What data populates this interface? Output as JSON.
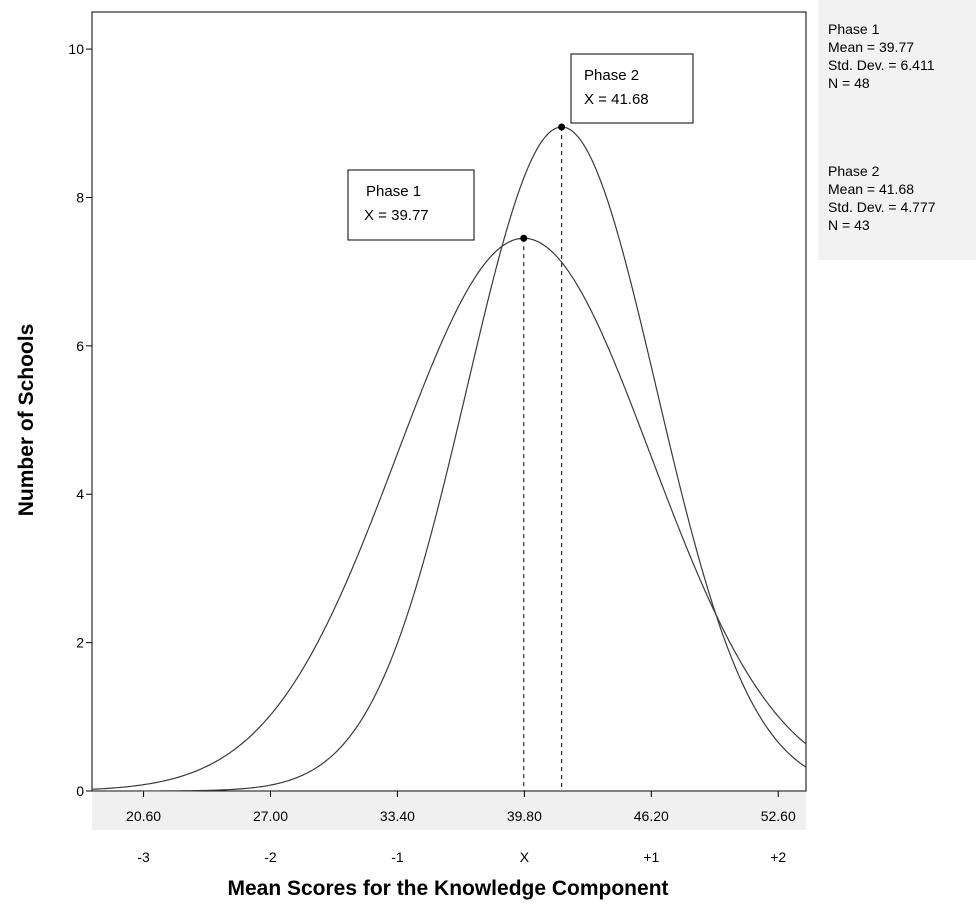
{
  "chart_data": {
    "type": "line",
    "xlabel": "Mean Scores for the Knowledge Component",
    "ylabel": "Number of Schools",
    "xlim": [
      18.0,
      54.0
    ],
    "ylim": [
      0,
      10.5
    ],
    "x_ticks": [
      20.6,
      27.0,
      33.4,
      39.8,
      46.2,
      52.6
    ],
    "x_tick_labels": [
      "20.60",
      "27.00",
      "33.40",
      "39.80",
      "46.20",
      "52.60"
    ],
    "z_tick_labels": [
      "-3",
      "-2",
      "-1",
      "X",
      "+1",
      "+2"
    ],
    "y_ticks": [
      0,
      2,
      4,
      6,
      8,
      10
    ],
    "y_tick_labels": [
      "0",
      "2",
      "4",
      "6",
      "8",
      "10"
    ],
    "grid": false,
    "series": [
      {
        "name": "Phase 1",
        "mean": 39.77,
        "std_dev": 6.411,
        "n": 48,
        "peak": 7.45
      },
      {
        "name": "Phase 2",
        "mean": 41.68,
        "std_dev": 4.777,
        "n": 43,
        "peak": 8.95
      }
    ],
    "annotations": [
      {
        "series": "Phase 1",
        "line1": "Phase 1",
        "line2": "X = 39.77"
      },
      {
        "series": "Phase 2",
        "line1": "Phase 2",
        "line2": "X = 41.68"
      }
    ],
    "stats_legend": [
      {
        "title": "Phase 1",
        "mean": "Mean = 39.77",
        "sd": "Std. Dev. = 6.411",
        "n": "N = 48"
      },
      {
        "title": "Phase 2",
        "mean": "Mean = 41.68",
        "sd": "Std. Dev. = 4.777",
        "n": "N = 43"
      }
    ]
  }
}
